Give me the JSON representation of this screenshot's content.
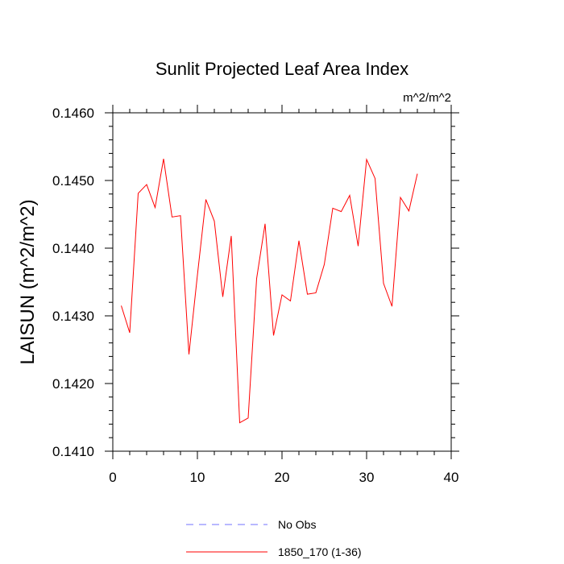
{
  "chart_data": {
    "type": "line",
    "title": "Sunlit Projected Leaf Area Index",
    "units_label": "m^2/m^2",
    "xlabel": "",
    "ylabel": "LAISUN  (m^2/m^2)",
    "xlim": [
      0,
      40
    ],
    "ylim": [
      0.141,
      0.146
    ],
    "xticks": [
      0,
      10,
      20,
      30,
      40
    ],
    "xtick_labels": [
      "0",
      "10",
      "20",
      "30",
      "40"
    ],
    "yticks": [
      0.141,
      0.142,
      0.143,
      0.144,
      0.145,
      0.146
    ],
    "ytick_labels": [
      "0.1410",
      "0.1420",
      "0.1430",
      "0.1440",
      "0.1450",
      "0.1460"
    ],
    "legend_position": "bottom",
    "series": [
      {
        "name": "No Obs",
        "color": "#7070ff",
        "dash": "dashed",
        "x": [],
        "y": []
      },
      {
        "name": "1850_170 (1-36)",
        "color": "#ff0000",
        "dash": "solid",
        "x": [
          1,
          2,
          3,
          4,
          5,
          6,
          7,
          8,
          9,
          10,
          11,
          12,
          13,
          14,
          15,
          16,
          17,
          18,
          19,
          20,
          21,
          22,
          23,
          24,
          25,
          26,
          27,
          28,
          29,
          30,
          31,
          32,
          33,
          34,
          35,
          36
        ],
        "y": [
          0.14315,
          0.14275,
          0.14481,
          0.14494,
          0.1446,
          0.14532,
          0.14446,
          0.14448,
          0.14243,
          0.1436,
          0.14472,
          0.1444,
          0.14328,
          0.14418,
          0.14142,
          0.14149,
          0.14355,
          0.14436,
          0.14271,
          0.14331,
          0.14322,
          0.14411,
          0.14332,
          0.14334,
          0.14376,
          0.14459,
          0.14454,
          0.14478,
          0.14403,
          0.14531,
          0.14503,
          0.14348,
          0.14314,
          0.14475,
          0.14455,
          0.1451
        ]
      }
    ]
  }
}
